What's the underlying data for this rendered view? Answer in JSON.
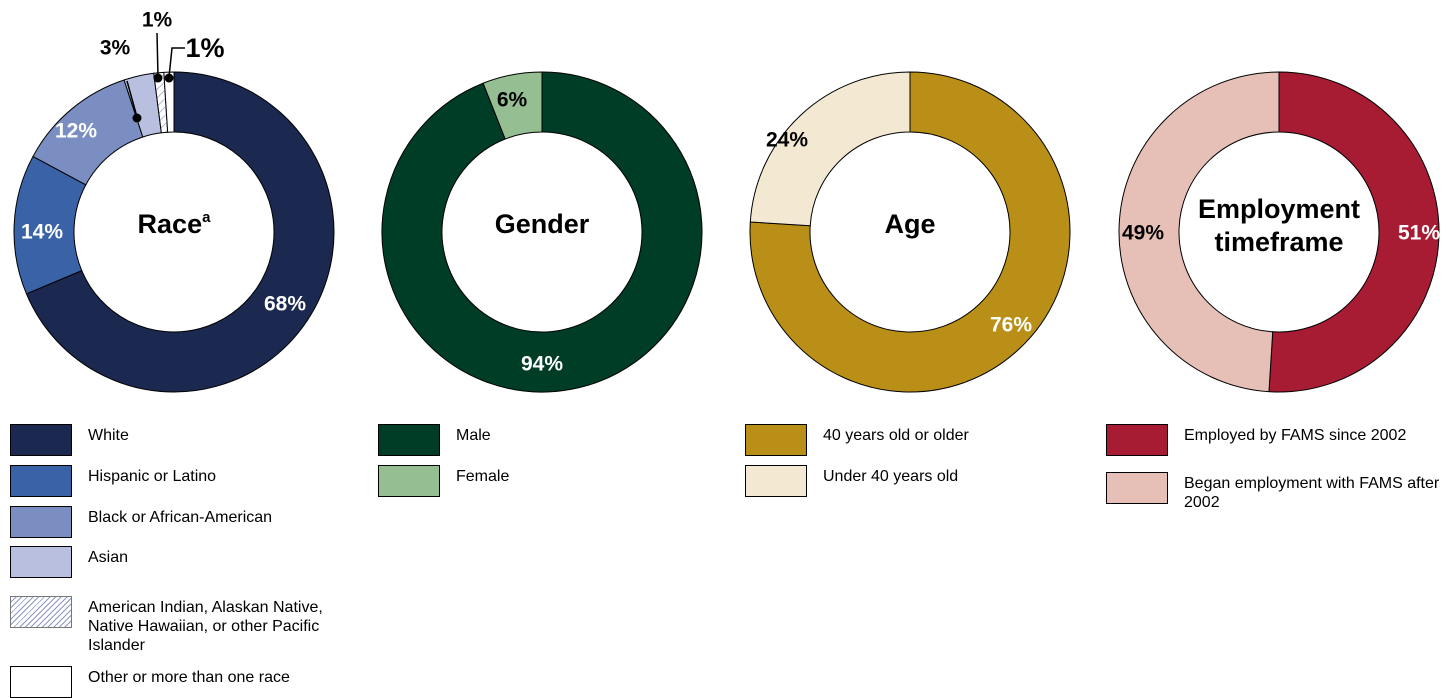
{
  "chart_data": [
    {
      "type": "pie",
      "title": "Race",
      "title_superscript": "a",
      "categories": [
        "White",
        "Hispanic or Latino",
        "Black or African-American",
        "Asian",
        "American Indian, Alaskan Native, Native Hawaiian, or other Pacific Islander",
        "Other or more than one race"
      ],
      "values": [
        68,
        14,
        12,
        3,
        1,
        1
      ],
      "labels": [
        "68%",
        "14%",
        "12%",
        "3%",
        "1%",
        "1%"
      ],
      "colors": [
        "#1b2850",
        "#3a62a6",
        "#7a8ec2",
        "#b9c0df",
        "#ffffff",
        "#ffffff"
      ],
      "patterns": [
        "solid",
        "solid",
        "solid",
        "solid",
        "hatch",
        "solid"
      ]
    },
    {
      "type": "pie",
      "title": "Gender",
      "categories": [
        "Male",
        "Female"
      ],
      "values": [
        94,
        6
      ],
      "labels": [
        "94%",
        "6%"
      ],
      "colors": [
        "#003d26",
        "#95bf93"
      ]
    },
    {
      "type": "pie",
      "title": "Age",
      "categories": [
        "40 years old or older",
        "Under 40 years old"
      ],
      "values": [
        76,
        24
      ],
      "labels": [
        "76%",
        "24%"
      ],
      "colors": [
        "#b98f17",
        "#f3e8d2"
      ]
    },
    {
      "type": "pie",
      "title": "Employment timeframe",
      "categories": [
        "Employed by FAMS since 2002",
        "Began employment with FAMS after 2002"
      ],
      "values": [
        51,
        49
      ],
      "labels": [
        "51%",
        "49%"
      ],
      "colors": [
        "#a71b33",
        "#e6c0b7"
      ]
    }
  ]
}
